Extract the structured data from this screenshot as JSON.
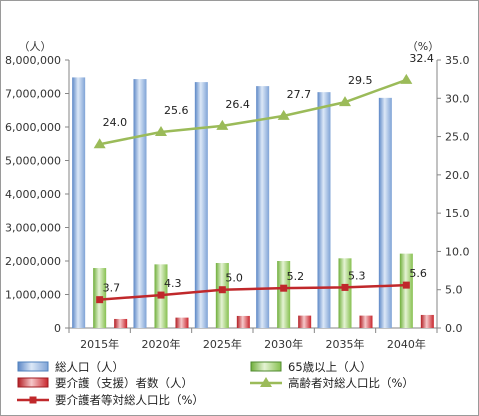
{
  "chart_data": {
    "type": "bar",
    "categories": [
      "2015年",
      "2020年",
      "2025年",
      "2030年",
      "2035年",
      "2040年"
    ],
    "y_left": {
      "unit_label": "（人）",
      "range": [
        0,
        8000000
      ],
      "ticks": [
        "0",
        "1,000,000",
        "2,000,000",
        "3,000,000",
        "4,000,000",
        "5,000,000",
        "6,000,000",
        "7,000,000",
        "8,000,000"
      ]
    },
    "y_right": {
      "unit_label": "（%）",
      "range": [
        0,
        35
      ],
      "ticks": [
        "0.0",
        "5.0",
        "10.0",
        "15.0",
        "20.0",
        "25.0",
        "30.0",
        "35.0"
      ]
    },
    "series": [
      {
        "name": "総人口（人）",
        "kind": "bar",
        "axis": "left",
        "color": "#8eb4e3",
        "values": [
          7480000,
          7430000,
          7340000,
          7220000,
          7040000,
          6870000
        ]
      },
      {
        "name": "65歳以上（人）",
        "kind": "bar",
        "axis": "left",
        "color": "#92d050",
        "values": [
          1790000,
          1900000,
          1940000,
          2000000,
          2080000,
          2220000
        ]
      },
      {
        "name": "要介護（支援）者数（人）",
        "kind": "bar",
        "axis": "left",
        "color": "#d9242b",
        "values": [
          270000,
          310000,
          360000,
          370000,
          370000,
          390000
        ]
      },
      {
        "name": "高齢者対総人口比（%）",
        "kind": "line",
        "axis": "right",
        "color": "#9bbb59",
        "marker": "triangle",
        "values": [
          24.0,
          25.6,
          26.4,
          27.7,
          29.5,
          32.4
        ],
        "labels": [
          "24.0",
          "25.6",
          "26.4",
          "27.7",
          "29.5",
          "32.4"
        ]
      },
      {
        "name": "要介護者等対総人口比（%）",
        "kind": "line",
        "axis": "right",
        "color": "#c0282b",
        "marker": "square",
        "values": [
          3.7,
          4.3,
          5.0,
          5.2,
          5.3,
          5.6
        ],
        "labels": [
          "3.7",
          "4.3",
          "5.0",
          "5.2",
          "5.3",
          "5.6"
        ]
      }
    ],
    "grid": false,
    "legend_position": "bottom"
  }
}
